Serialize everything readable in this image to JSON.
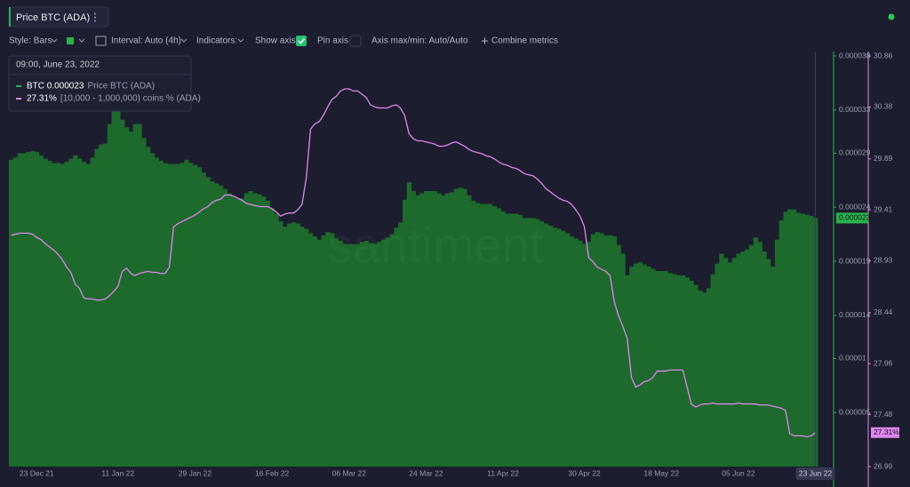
{
  "header": {
    "title": "Price BTC (ADA)"
  },
  "toolbar": {
    "style": "Style: Bars",
    "interval": "Interval: Auto (4h)",
    "indicators": "Indicators:",
    "show_axis": "Show axis",
    "pin_axis": "Pin axis",
    "axis_minmax": "Axis max/min: Auto/Auto",
    "combine": "Combine metrics"
  },
  "tooltip": {
    "date": "09:00, June 23, 2022",
    "row1_value": "BTC 0.000023",
    "row2_value": "27.31%"
  },
  "watermark": "santiment",
  "chart_data": {
    "type": "combo",
    "categories": [
      null,
      null,
      null,
      null,
      null,
      null,
      "23 Dec 21",
      null,
      null,
      null,
      null,
      null,
      null,
      null,
      null,
      null,
      null,
      null,
      null,
      null,
      null,
      null,
      null,
      null,
      null,
      "11 Jan 22",
      null,
      null,
      null,
      null,
      null,
      null,
      null,
      null,
      null,
      null,
      null,
      null,
      null,
      null,
      null,
      null,
      null,
      "29 Jan 22",
      null,
      null,
      null,
      null,
      null,
      null,
      null,
      null,
      null,
      null,
      null,
      null,
      null,
      null,
      null,
      null,
      null,
      "16 Feb 22",
      null,
      null,
      null,
      null,
      null,
      null,
      null,
      null,
      null,
      null,
      null,
      null,
      null,
      null,
      null,
      null,
      null,
      "06 Mar 22",
      null,
      null,
      null,
      null,
      null,
      null,
      null,
      null,
      null,
      null,
      null,
      null,
      null,
      null,
      null,
      null,
      null,
      "24 Mar 22",
      null,
      null,
      null,
      null,
      null,
      null,
      null,
      null,
      null,
      null,
      null,
      null,
      null,
      null,
      null,
      null,
      null,
      "11 Apr 22",
      null,
      null,
      null,
      null,
      null,
      null,
      null,
      null,
      null,
      null,
      null,
      null,
      null,
      null,
      null,
      null,
      null,
      null,
      "30 Apr 22",
      null,
      null,
      null,
      null,
      null,
      null,
      null,
      null,
      null,
      null,
      null,
      null,
      null,
      null,
      null,
      null,
      null,
      "18 May 22",
      null,
      null,
      null,
      null,
      null,
      null,
      null,
      null,
      null,
      null,
      null,
      null,
      null,
      null,
      null,
      null,
      null,
      "05 Jun 22",
      null,
      null,
      null,
      null,
      null,
      null,
      null,
      null,
      null,
      null,
      null,
      null,
      null,
      null,
      null,
      null,
      null,
      "23 Jun 22"
    ],
    "series": [
      {
        "name": "Price BTC (ADA)",
        "type": "bar",
        "color": "#1d6a2c",
        "axis_color": "#2bb24c",
        "last_value_label": "0.000023",
        "values": [
          2.84e-05,
          2.86e-05,
          2.9e-05,
          2.9e-05,
          2.91e-05,
          2.92e-05,
          2.91e-05,
          2.88e-05,
          2.85e-05,
          2.83e-05,
          2.81e-05,
          2.81e-05,
          2.8e-05,
          2.82e-05,
          2.85e-05,
          2.88e-05,
          2.85e-05,
          2.82e-05,
          2.8e-05,
          2.86e-05,
          2.94e-05,
          2.98e-05,
          2.99e-05,
          3.17e-05,
          3.35e-05,
          3.33e-05,
          3.21e-05,
          3.14e-05,
          3.1e-05,
          3.17e-05,
          3.17e-05,
          3.04e-05,
          2.96e-05,
          2.9e-05,
          2.86e-05,
          2.83e-05,
          2.81e-05,
          2.8e-05,
          2.8e-05,
          2.8e-05,
          2.81e-05,
          2.84e-05,
          2.81e-05,
          2.79e-05,
          2.77e-05,
          2.72e-05,
          2.68e-05,
          2.64e-05,
          2.62e-05,
          2.6e-05,
          2.57e-05,
          2.53e-05,
          2.5e-05,
          2.48e-05,
          2.48e-05,
          2.53e-05,
          2.55e-05,
          2.53e-05,
          2.52e-05,
          2.5e-05,
          2.46e-05,
          2.39e-05,
          2.34e-05,
          2.27e-05,
          2.22e-05,
          2.25e-05,
          2.26e-05,
          2.25e-05,
          2.22e-05,
          2.2e-05,
          2.16e-05,
          2.13e-05,
          2.1e-05,
          2.14e-05,
          2.17e-05,
          2.16e-05,
          2.11e-05,
          2.09e-05,
          2.06e-05,
          2.06e-05,
          2.06e-05,
          2.06e-05,
          2.08e-05,
          2.09e-05,
          2.07e-05,
          2.06e-05,
          2.08e-05,
          2.1e-05,
          2.12e-05,
          2.15e-05,
          2.21e-05,
          2.26e-05,
          2.47e-05,
          2.63e-05,
          2.55e-05,
          2.51e-05,
          2.53e-05,
          2.55e-05,
          2.55e-05,
          2.55e-05,
          2.53e-05,
          2.51e-05,
          2.53e-05,
          2.54e-05,
          2.57e-05,
          2.58e-05,
          2.57e-05,
          2.51e-05,
          2.46e-05,
          2.44e-05,
          2.43e-05,
          2.43e-05,
          2.43e-05,
          2.41e-05,
          2.39e-05,
          2.36e-05,
          2.34e-05,
          2.34e-05,
          2.34e-05,
          2.33e-05,
          2.3e-05,
          2.3e-05,
          2.3e-05,
          2.29e-05,
          2.27e-05,
          2.25e-05,
          2.23e-05,
          2.21e-05,
          2.2e-05,
          2.18e-05,
          2.16e-05,
          2.13e-05,
          2.11e-05,
          2.09e-05,
          2.06e-05,
          2.08e-05,
          2.15e-05,
          2.17e-05,
          2.16e-05,
          2.14e-05,
          2.14e-05,
          2.13e-05,
          2.05e-05,
          1.97e-05,
          1.77e-05,
          1.85e-05,
          1.88e-05,
          1.89e-05,
          1.87e-05,
          1.85e-05,
          1.83e-05,
          1.81e-05,
          1.81e-05,
          1.81e-05,
          1.79e-05,
          1.78e-05,
          1.77e-05,
          1.77e-05,
          1.75e-05,
          1.72e-05,
          1.68e-05,
          1.63e-05,
          1.61e-05,
          1.65e-05,
          1.78e-05,
          1.88e-05,
          1.97e-05,
          1.93e-05,
          1.89e-05,
          1.93e-05,
          1.97e-05,
          1.99e-05,
          2.01e-05,
          2.05e-05,
          2.12e-05,
          2.08e-05,
          1.99e-05,
          1.92e-05,
          1.85e-05,
          2.1e-05,
          2.28e-05,
          2.36e-05,
          2.38e-05,
          2.38e-05,
          2.35e-05,
          2.34e-05,
          2.33e-05,
          2.32e-05,
          2.3e-05
        ]
      },
      {
        "name": "[10,000 - 1,000,000) coins % (ADA)",
        "type": "line",
        "axis": "y2",
        "color": "#df86ef",
        "axis_color": "#df86ef",
        "last_value_label": "27.31%",
        "values": [
          29.17,
          29.18,
          29.19,
          29.19,
          29.19,
          29.18,
          29.15,
          29.13,
          29.09,
          29.06,
          29.03,
          28.99,
          28.94,
          28.87,
          28.82,
          28.71,
          28.67,
          28.58,
          28.57,
          28.57,
          28.56,
          28.56,
          28.57,
          28.6,
          28.64,
          28.69,
          28.83,
          28.86,
          28.81,
          28.79,
          28.81,
          28.82,
          28.83,
          28.82,
          28.82,
          28.81,
          28.81,
          28.87,
          29.25,
          29.28,
          29.3,
          29.32,
          29.34,
          29.36,
          29.39,
          29.42,
          29.44,
          29.48,
          29.5,
          29.51,
          29.55,
          29.55,
          29.54,
          29.52,
          29.5,
          29.47,
          29.46,
          29.45,
          29.44,
          29.44,
          29.44,
          29.42,
          29.39,
          29.35,
          29.37,
          29.38,
          29.38,
          29.41,
          29.46,
          29.71,
          30.17,
          30.22,
          30.24,
          30.3,
          30.38,
          30.45,
          30.48,
          30.53,
          30.55,
          30.55,
          30.53,
          30.53,
          30.5,
          30.47,
          30.4,
          30.38,
          30.37,
          30.37,
          30.37,
          30.39,
          30.4,
          30.37,
          30.3,
          30.13,
          30.08,
          30.06,
          30.06,
          30.05,
          30.04,
          30.03,
          30.01,
          30.01,
          30.02,
          30.04,
          30.05,
          30.03,
          30.01,
          29.98,
          29.96,
          29.95,
          29.94,
          29.92,
          29.91,
          29.89,
          29.86,
          29.84,
          29.83,
          29.81,
          29.8,
          29.78,
          29.75,
          29.74,
          29.73,
          29.7,
          29.66,
          29.61,
          29.58,
          29.55,
          29.52,
          29.5,
          29.49,
          29.46,
          29.41,
          29.35,
          29.25,
          28.96,
          28.92,
          28.87,
          28.85,
          28.83,
          28.79,
          28.54,
          28.41,
          28.31,
          28.2,
          27.83,
          27.74,
          27.76,
          27.79,
          27.8,
          27.83,
          27.89,
          27.89,
          27.89,
          27.9,
          27.9,
          27.9,
          27.9,
          27.74,
          27.58,
          27.55,
          27.57,
          27.58,
          27.58,
          27.59,
          27.58,
          27.58,
          27.58,
          27.58,
          27.58,
          27.59,
          27.58,
          27.58,
          27.58,
          27.58,
          27.57,
          27.57,
          27.57,
          27.56,
          27.55,
          27.54,
          27.52,
          27.3,
          27.28,
          27.28,
          27.28,
          27.27,
          27.28,
          27.31
        ]
      }
    ],
    "ylim": [
      0,
      3.8e-05
    ],
    "yticks": [
      5e-06,
      1e-05,
      1.4e-05,
      1.9e-05,
      2.4e-05,
      2.9e-05,
      3.3e-05,
      3.8e-05
    ],
    "y2lim": [
      26.99,
      30.86
    ],
    "y2ticks": [
      26.99,
      27.48,
      27.96,
      28.44,
      28.93,
      29.41,
      29.89,
      30.38,
      30.86
    ],
    "grid": false
  }
}
